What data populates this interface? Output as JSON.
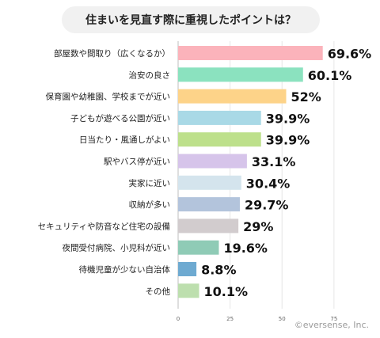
{
  "title": "住まいを見直す際に重視したポイントは？",
  "copyright": "©eversense, Inc.",
  "chart_data": {
    "type": "bar",
    "orientation": "horizontal",
    "title": "住まいを見直す際に重視したポイントは？",
    "categories": [
      "部屋数や間取り（広くなるか）",
      "治安の良さ",
      "保育園や幼稚園、学校までが近い",
      "子どもが遊べる公園が近い",
      "日当たり・風通しがよい",
      "駅やバス停が近い",
      "実家に近い",
      "収納が多い",
      "セキュリティや防音など住宅の設備",
      "夜間受付病院、小児科が近い",
      "待機児童が少ない自治体",
      "その他"
    ],
    "values": [
      69.6,
      60.1,
      52,
      39.9,
      39.9,
      33.1,
      30.4,
      29.7,
      29,
      19.6,
      8.8,
      10.1
    ],
    "value_labels": [
      "69.6%",
      "60.1%",
      "52%",
      "39.9%",
      "39.9%",
      "33.1%",
      "30.4%",
      "29.7%",
      "29%",
      "19.6%",
      "8.8%",
      "10.1%"
    ],
    "colors": [
      "#fbb3bb",
      "#8be2bf",
      "#fdd389",
      "#a9d9e6",
      "#bde08b",
      "#d6c4ea",
      "#d4e4ed",
      "#b3c4dc",
      "#d2ccce",
      "#8fcbb6",
      "#6eaad1",
      "#bddfae"
    ],
    "xticks": [
      0,
      25,
      50,
      75
    ],
    "xlim": [
      0,
      100
    ],
    "grid": true
  }
}
